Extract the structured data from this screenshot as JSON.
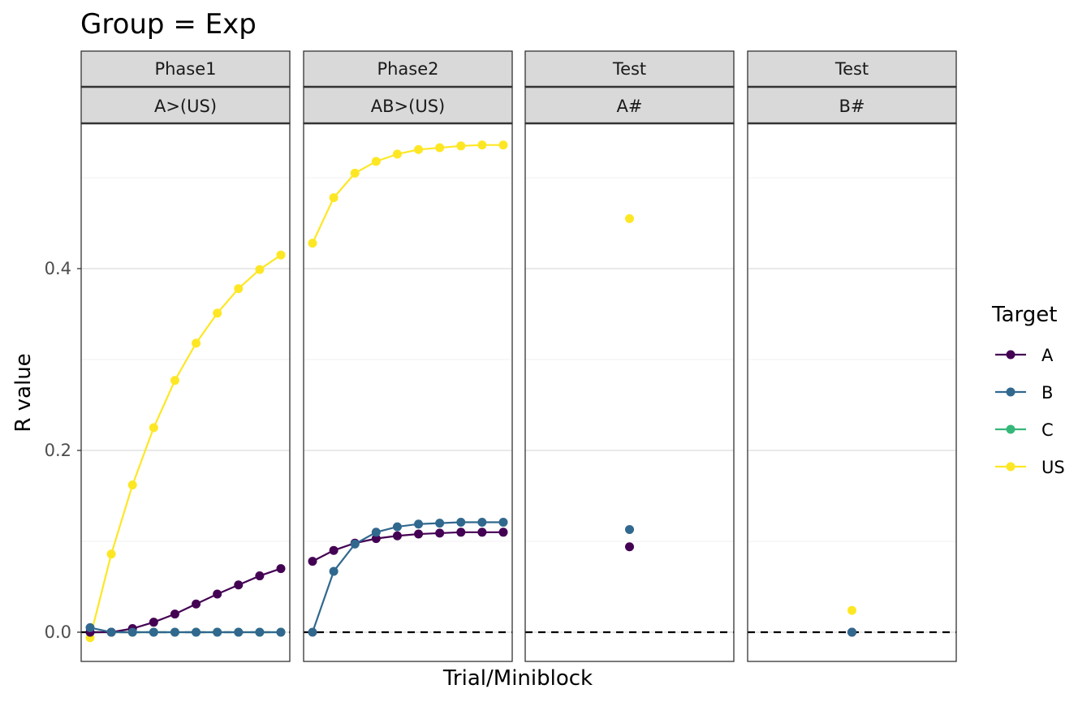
{
  "chart_data": {
    "type": "line",
    "title": "Group = Exp",
    "xlabel": "Trial/Miniblock",
    "ylabel": "R value",
    "ylim": [
      -0.06,
      0.56
    ],
    "y_ticks": [
      "0.0",
      "0.2",
      "0.4"
    ],
    "grid": true,
    "reference_line": {
      "y": 0,
      "style": "dashed"
    },
    "legend": {
      "title": "Target",
      "position": "right",
      "entries": [
        {
          "name": "A",
          "color": "#440154"
        },
        {
          "name": "B",
          "color": "#31688E"
        },
        {
          "name": "C",
          "color": "#35B779"
        },
        {
          "name": "US",
          "color": "#FDE725"
        }
      ]
    },
    "panels": [
      {
        "strip_top": "Phase1",
        "strip_bottom": "A>(US)",
        "n_points": 10,
        "lines": true,
        "series": [
          {
            "name": "US",
            "values": [
              -0.006,
              0.086,
              0.162,
              0.225,
              0.277,
              0.318,
              0.351,
              0.378,
              0.399,
              0.415
            ]
          },
          {
            "name": "C",
            "values": [
              0,
              0,
              0,
              0,
              0,
              0,
              0,
              0,
              0,
              0
            ]
          },
          {
            "name": "A",
            "values": [
              0,
              0,
              0.004,
              0.011,
              0.02,
              0.031,
              0.042,
              0.052,
              0.062,
              0.07
            ]
          },
          {
            "name": "B",
            "values": [
              0.005,
              0,
              0,
              0,
              0,
              0,
              0,
              0,
              0,
              0
            ]
          }
        ]
      },
      {
        "strip_top": "Phase2",
        "strip_bottom": "AB>(US)",
        "n_points": 10,
        "lines": true,
        "series": [
          {
            "name": "US",
            "values": [
              0.428,
              0.478,
              0.505,
              0.518,
              0.526,
              0.531,
              0.533,
              0.535,
              0.536,
              0.536
            ]
          },
          {
            "name": "A",
            "values": [
              0.078,
              0.09,
              0.098,
              0.103,
              0.106,
              0.108,
              0.109,
              0.11,
              0.11,
              0.11
            ]
          },
          {
            "name": "B",
            "values": [
              0,
              0.067,
              0.097,
              0.11,
              0.116,
              0.119,
              0.12,
              0.121,
              0.121,
              0.121
            ]
          }
        ]
      },
      {
        "strip_top": "Test",
        "strip_bottom": "A#",
        "n_points": 1,
        "lines": false,
        "series": [
          {
            "name": "US",
            "values": [
              0.455
            ]
          },
          {
            "name": "B",
            "values": [
              0.113
            ]
          },
          {
            "name": "A",
            "values": [
              0.094
            ]
          }
        ]
      },
      {
        "strip_top": "Test",
        "strip_bottom": "B#",
        "n_points": 1,
        "lines": false,
        "series": [
          {
            "name": "US",
            "values": [
              0.024
            ]
          },
          {
            "name": "A",
            "values": [
              0
            ]
          },
          {
            "name": "B",
            "values": [
              0
            ]
          }
        ]
      }
    ]
  }
}
